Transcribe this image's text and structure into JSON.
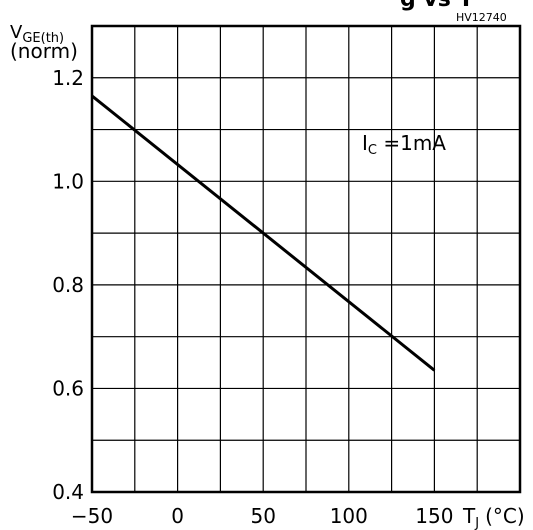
{
  "header_fragment": "g vs T",
  "figure_code": "HV12740",
  "chart_data": {
    "type": "line",
    "ylabel_main": "V",
    "ylabel_sub": "GE(th)",
    "ylabel_unit": "(norm)",
    "xlabel_main": "T",
    "xlabel_sub": "J",
    "xlabel_unit": "(°C)",
    "annotation": {
      "main": "I",
      "sub": "C",
      "rest": " =1mA"
    },
    "xlim": [
      -50,
      200
    ],
    "ylim": [
      0.4,
      1.3
    ],
    "x_ticks": [
      "−50",
      "0",
      "50",
      "100",
      "150"
    ],
    "x_tick_values": [
      -50,
      0,
      50,
      100,
      150
    ],
    "y_ticks": [
      "0.4",
      "0.6",
      "0.8",
      "1.0",
      "1.2"
    ],
    "y_tick_values": [
      0.4,
      0.6,
      0.8,
      1.0,
      1.2
    ],
    "grid": true,
    "series": [
      {
        "values": [
          [
            -50,
            1.165
          ],
          [
            150,
            0.635
          ]
        ]
      }
    ]
  }
}
